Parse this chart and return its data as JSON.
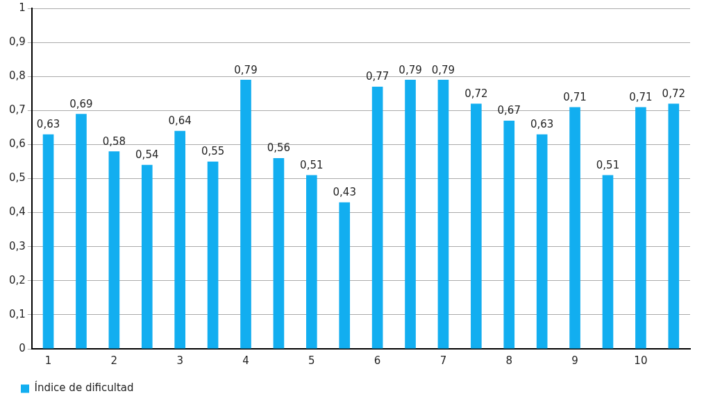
{
  "chart_data": {
    "type": "bar",
    "categories": [
      "1",
      null,
      "2",
      null,
      "3",
      null,
      "4",
      null,
      "5",
      null,
      "6",
      null,
      "7",
      null,
      "8",
      null,
      "9",
      null,
      "10",
      null
    ],
    "series": [
      {
        "name": "Índice de dificultad",
        "color": "#12aef0",
        "values": [
          0.63,
          0.69,
          0.58,
          0.54,
          0.64,
          0.55,
          0.79,
          0.56,
          0.51,
          0.43,
          0.77,
          0.79,
          0.79,
          0.72,
          0.67,
          0.63,
          0.71,
          0.51,
          0.71,
          0.72
        ],
        "value_labels": [
          "0,63",
          "0,69",
          "0,58",
          "0,54",
          "0,64",
          "0,55",
          "0,79",
          "0,56",
          "0,51",
          "0,43",
          "0,77",
          "0,79",
          "0,79",
          "0,72",
          "0,67",
          "0,63",
          "0,71",
          "0,51",
          "0,71",
          "0,72"
        ]
      }
    ],
    "ylim": [
      0,
      1
    ],
    "yticks": [
      0,
      {
        "value": 0.1,
        "label": "0,1"
      },
      {
        "value": 0.2,
        "label": "0,2"
      },
      {
        "value": 0.3,
        "label": "0,3"
      },
      {
        "value": 0.4,
        "label": "0,4"
      },
      {
        "value": 0.5,
        "label": "0,5"
      },
      {
        "value": 0.6,
        "label": "0,6"
      },
      {
        "value": 0.7,
        "label": "0,7"
      },
      {
        "value": 0.8,
        "label": "0,8"
      },
      {
        "value": 0.9,
        "label": "0,9"
      },
      1
    ],
    "grid": "y",
    "legend": "bottom left"
  }
}
